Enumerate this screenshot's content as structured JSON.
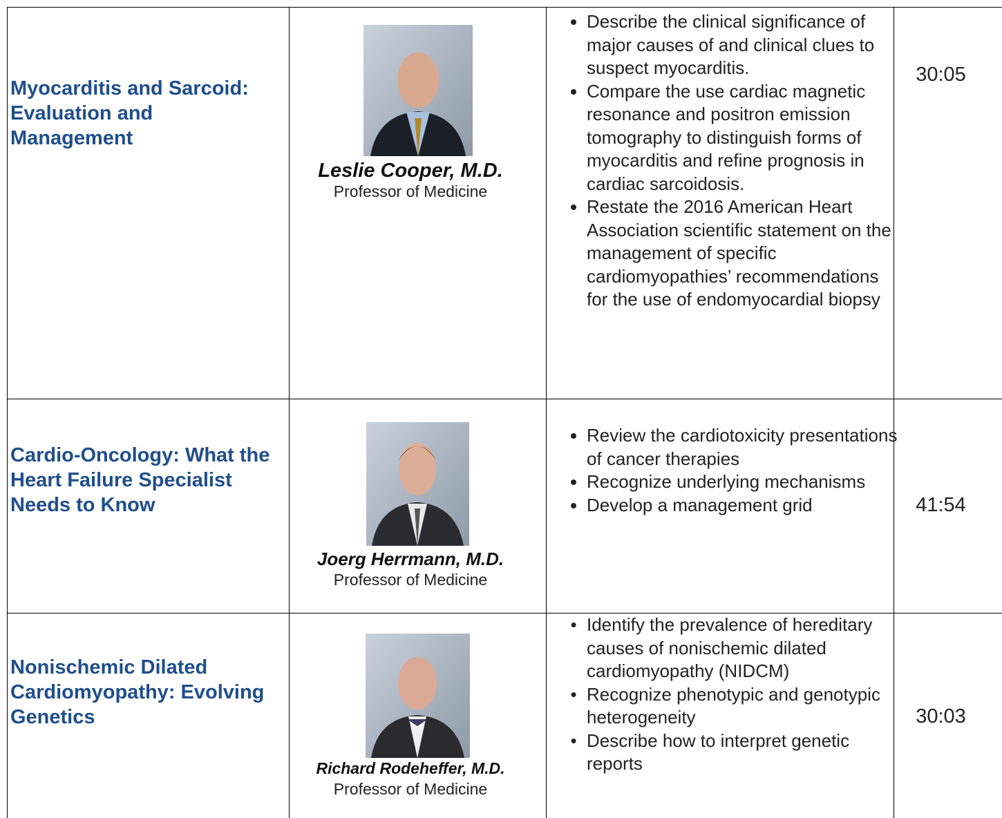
{
  "table": {
    "rows": [
      {
        "title": "Myocarditis and Sarcoid: Evaluation and Management",
        "speaker": "Leslie Cooper, M.D.",
        "role": "Professor of Medicine",
        "objectives": [
          "Describe the clinical significance of major causes of and clinical clues to suspect myocarditis.",
          "Compare the use cardiac magnetic resonance and positron emission tomography to distinguish forms of myocarditis and refine prognosis in cardiac sarcoidosis.",
          "Restate the 2016 American Heart Association scientific statement on the management of specific cardiomyopathies’ recommendations for the use of endomyocardial biopsy"
        ],
        "duration": "30:05"
      },
      {
        "title": "Cardio-Oncology: What the Heart Failure Specialist Needs to Know",
        "speaker": "Joerg Herrmann, M.D.",
        "role": "Professor of Medicine",
        "objectives": [
          "Review the cardiotoxicity presentations of cancer therapies",
          "Recognize underlying mechanisms",
          "Develop a management grid"
        ],
        "duration": "41:54"
      },
      {
        "title": "Nonischemic Dilated Cardiomyopathy: Evolving Genetics",
        "speaker": "Richard Rodeheffer, M.D.",
        "role": "Professor of Medicine",
        "objectives": [
          "Identify the prevalence of hereditary causes of nonischemic dilated cardiomyopathy (NIDCM)",
          "Recognize phenotypic and genotypic heterogeneity",
          "Describe how to interpret genetic reports"
        ],
        "duration": "30:03"
      }
    ]
  }
}
